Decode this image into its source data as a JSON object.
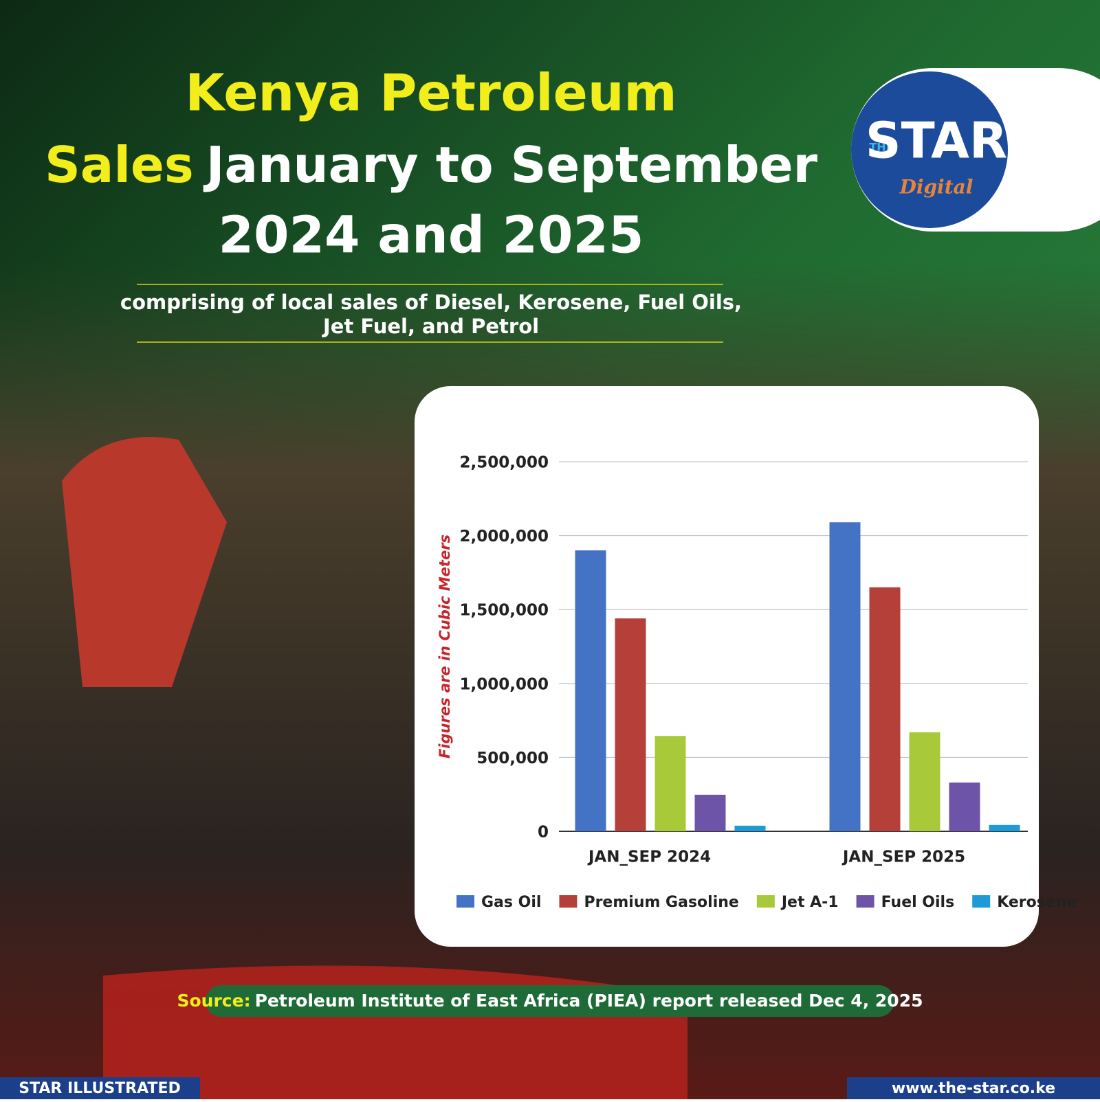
{
  "header": {
    "title_parts": [
      "Kenya Petroleum",
      "Sales",
      "January to September",
      "2024 and 2025"
    ],
    "subtitle_lines": [
      "comprising of local sales of Diesel, Kerosene, Fuel Oils,",
      "Jet Fuel, and Petrol"
    ]
  },
  "logo": {
    "small": "THE",
    "main": "STAR",
    "sub": "Digital"
  },
  "chart_data": {
    "type": "bar",
    "y_label": "Figures are in Cubic Meters",
    "categories": [
      "JAN_SEP 2024",
      "JAN_SEP 2025"
    ],
    "series": [
      {
        "name": "Gas Oil",
        "color": "#4472c4",
        "values": [
          1900000,
          2090000
        ]
      },
      {
        "name": "Premium Gasoline",
        "color": "#b5403a",
        "values": [
          1440000,
          1650000
        ]
      },
      {
        "name": "Jet A-1",
        "color": "#a8c93a",
        "values": [
          645000,
          670000
        ]
      },
      {
        "name": "Fuel Oils",
        "color": "#6e54a8",
        "values": [
          247000,
          330000
        ]
      },
      {
        "name": "Kerosene",
        "color": "#1e9ad6",
        "values": [
          38000,
          43000
        ]
      }
    ],
    "ylim": [
      0,
      2500000
    ],
    "yticks": [
      0,
      {
        "value": 500000,
        "label": "500,000"
      },
      {
        "value": 1000000,
        "label": "1,000,000"
      },
      {
        "value": 1500000,
        "label": "1,500,000"
      },
      {
        "value": 2000000,
        "label": "2,000,000"
      },
      {
        "value": 2500000,
        "label": "2,500,000"
      }
    ],
    "grid": true,
    "legend": "bottom"
  },
  "source": {
    "label": "Source:",
    "text": "Petroleum Institute of East Africa (PIEA) report released Dec 4, 2025"
  },
  "footer": {
    "left": "STAR ILLUSTRATED",
    "right": "www.the-star.co.ke"
  }
}
